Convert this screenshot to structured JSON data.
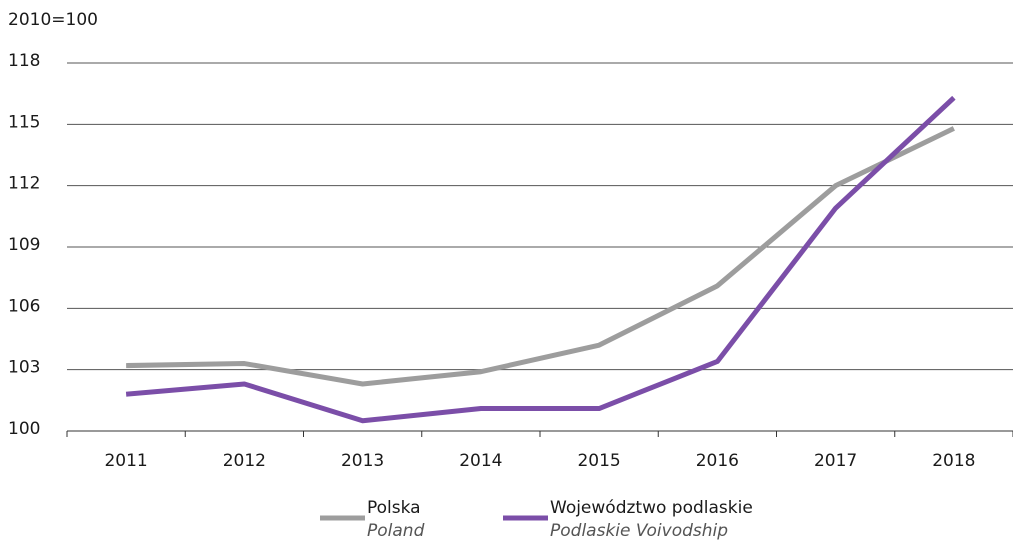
{
  "chart_data": {
    "type": "line",
    "y_axis_label": "2010=100",
    "categories": [
      "2011",
      "2012",
      "2013",
      "2014",
      "2015",
      "2016",
      "2017",
      "2018"
    ],
    "series": [
      {
        "name": "Polska",
        "name_en": "Poland",
        "color": "#9d9d9d",
        "values": [
          103.2,
          103.3,
          102.3,
          102.9,
          104.2,
          107.1,
          112.0,
          114.8
        ]
      },
      {
        "name": "Województwo podlaskie",
        "name_en": "Podlaskie Voivodship",
        "color": "#7b4ea8",
        "values": [
          101.8,
          102.3,
          100.5,
          101.1,
          101.1,
          103.4,
          110.9,
          116.3
        ]
      }
    ],
    "ylim": [
      100,
      118
    ],
    "yticks": [
      100,
      103,
      106,
      109,
      112,
      115,
      118
    ],
    "grid": true
  }
}
